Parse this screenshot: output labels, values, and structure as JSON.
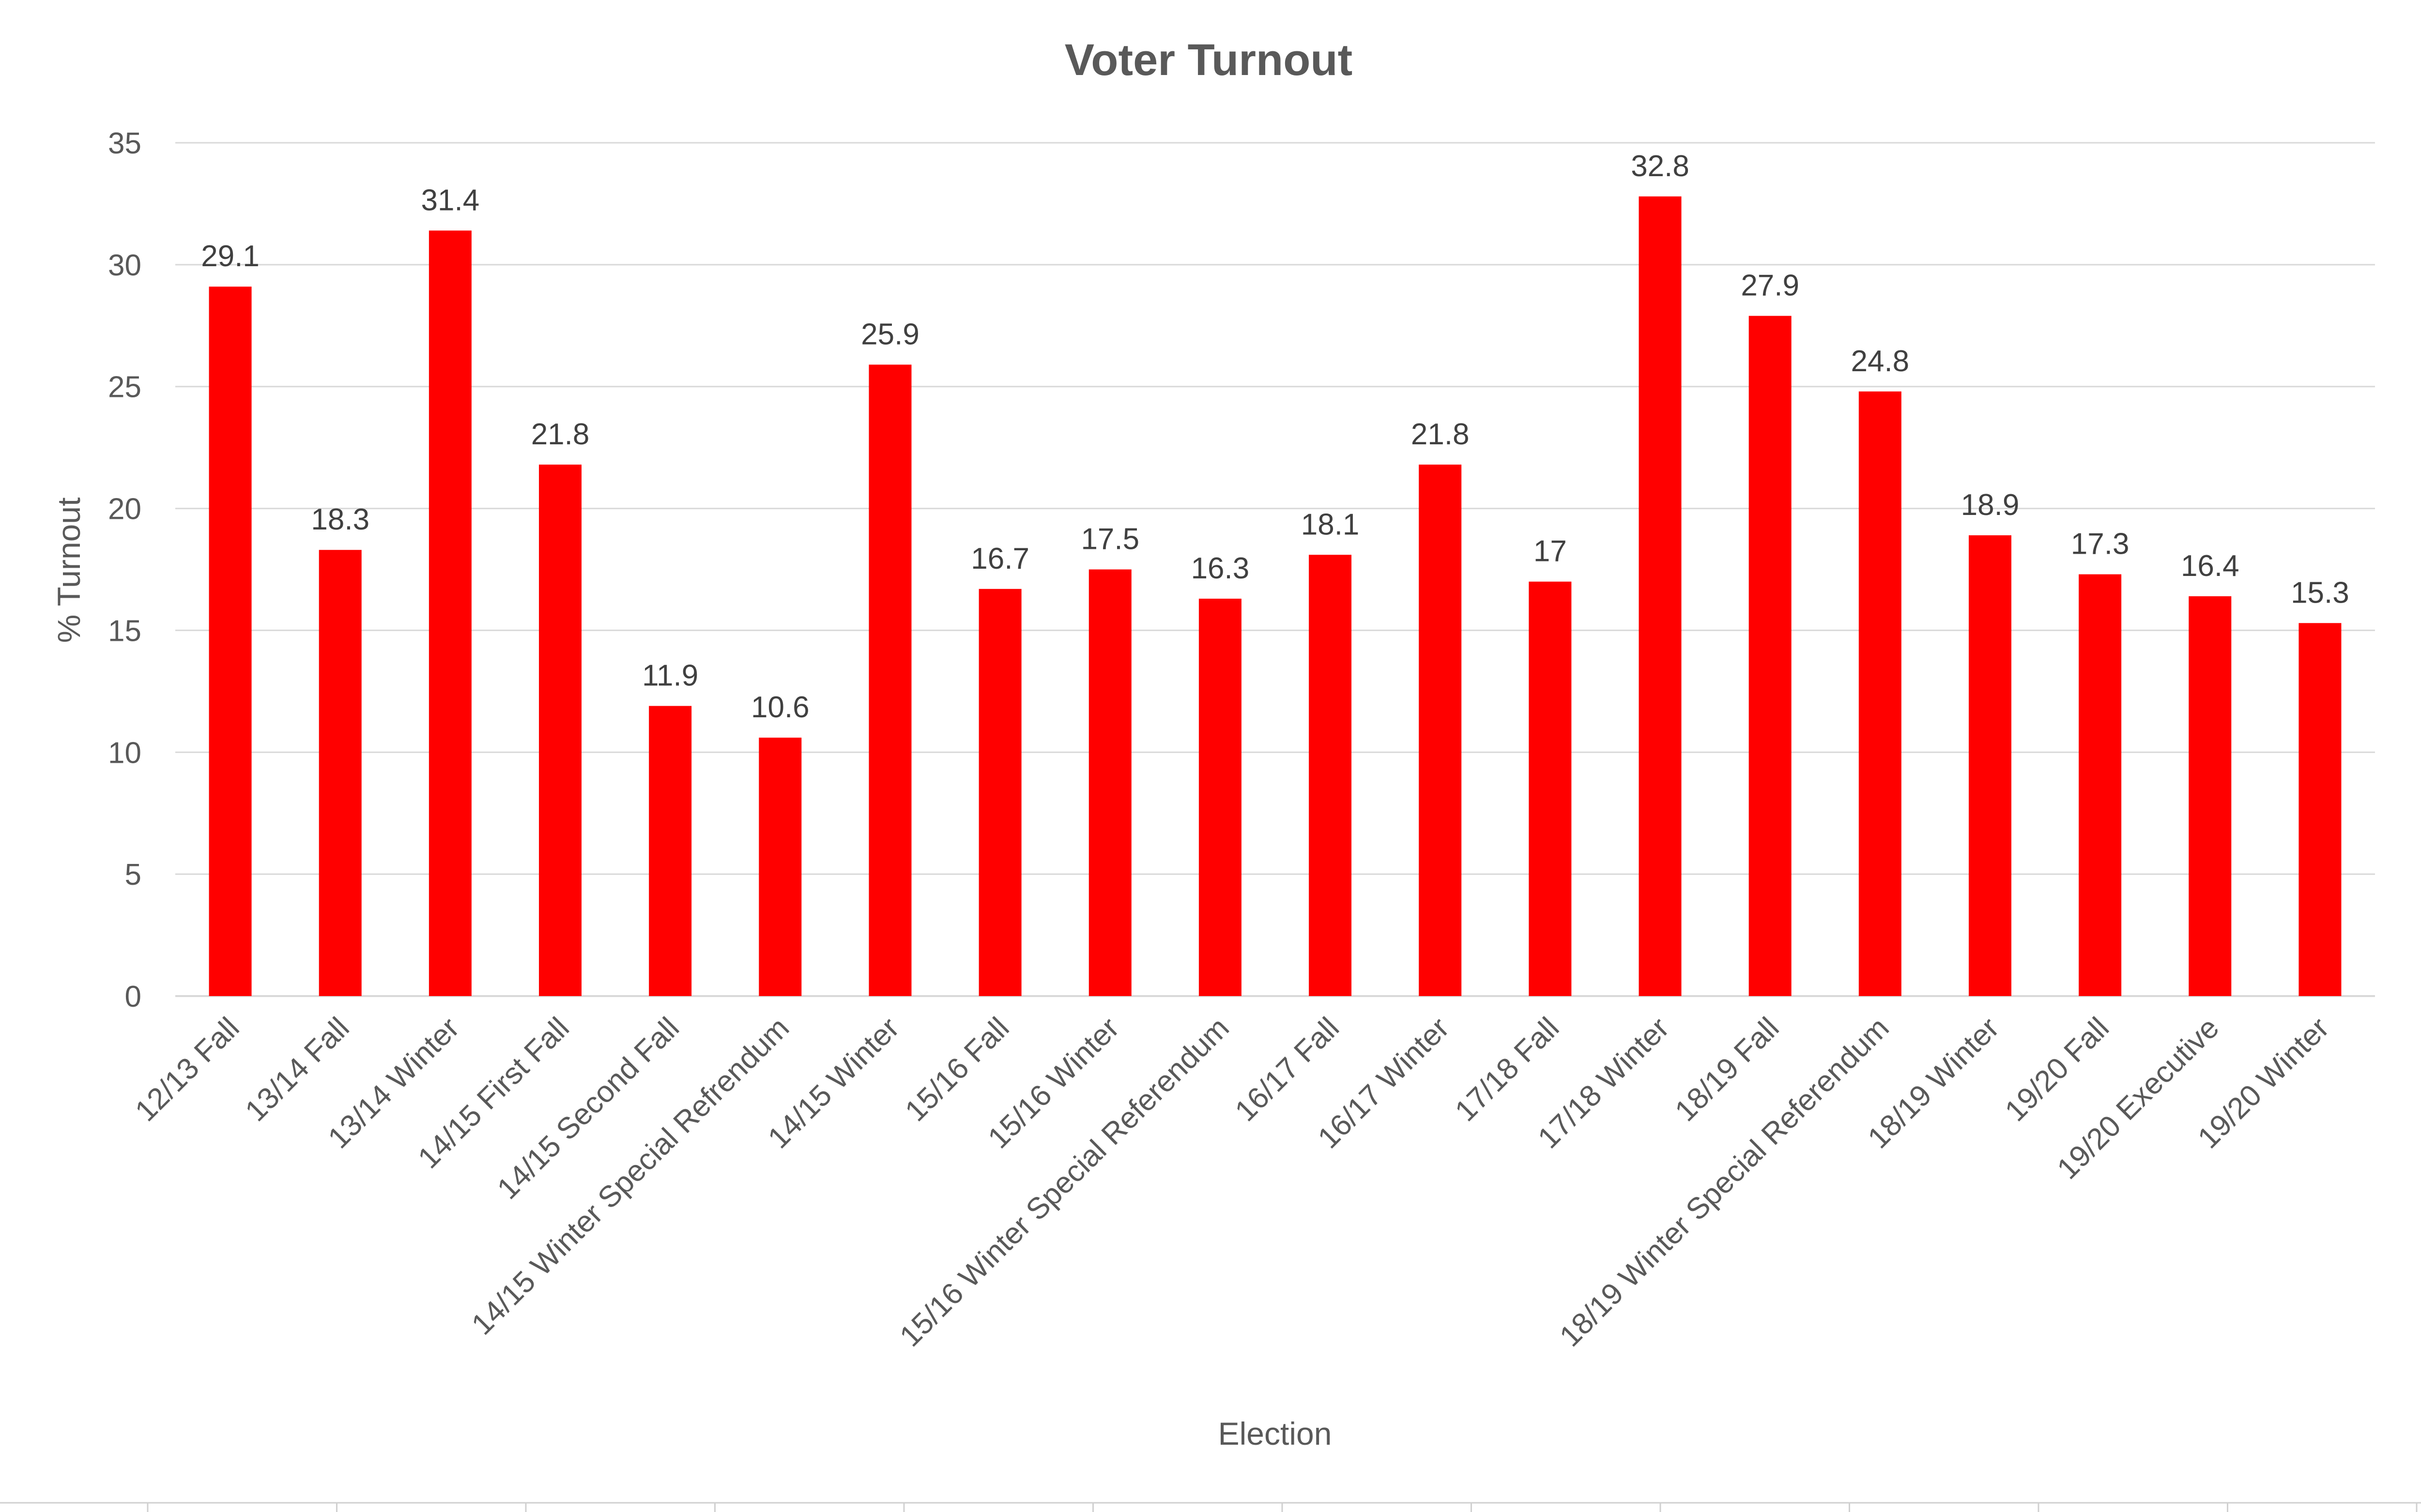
{
  "chart_data": {
    "type": "bar",
    "title": "Voter Turnout",
    "xlabel": "Election",
    "ylabel": "% Turnout",
    "ylim": [
      0,
      35
    ],
    "yticks": [
      0,
      5,
      10,
      15,
      20,
      25,
      30,
      35
    ],
    "grid": true,
    "legend": "none",
    "bar_color": "#ff0000",
    "categories": [
      "12/13 Fall",
      "13/14 Fall",
      "13/14 Winter",
      "14/15 First Fall",
      "14/15 Second Fall",
      "14/15 Winter Special Refrendum",
      "14/15 Winter",
      "15/16 Fall",
      "15/16 Winter",
      "15/16 Winter Special Referendum",
      "16/17 Fall",
      "16/17 Winter",
      "17/18 Fall",
      "17/18 Winter",
      "18/19 Fall",
      "18/19 Winter Special Referendum",
      "18/19 Winter",
      "19/20 Fall",
      "19/20 Executive",
      "19/20 Winter"
    ],
    "values": [
      29.1,
      18.3,
      31.4,
      21.8,
      11.9,
      10.6,
      25.9,
      16.7,
      17.5,
      16.3,
      18.1,
      21.8,
      17,
      32.8,
      27.9,
      24.8,
      18.9,
      17.3,
      16.4,
      15.3
    ]
  }
}
